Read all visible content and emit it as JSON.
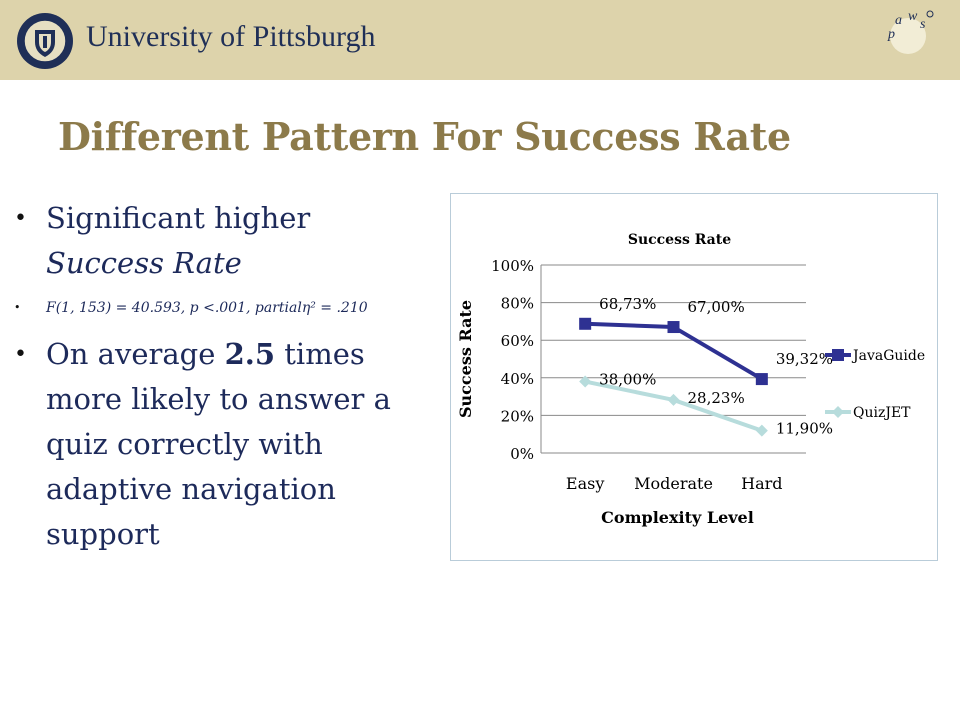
{
  "header": {
    "university_name": "University of Pittsburgh",
    "brand_color": "#ddd3ab",
    "text_color": "#1f2f57",
    "logo_letters": [
      "p",
      "a",
      "w",
      "s"
    ]
  },
  "slide": {
    "title": "Different Pattern For Success Rate",
    "title_color": "#8c7a4a",
    "bullets": {
      "b1_line1": "Significant higher",
      "b1_line2": "Success Rate",
      "b2_text": "F(1, 153) = 40.593, p <.001, partialη² = .210",
      "b3_prefix": "On average ",
      "b3_strong": "2.5",
      "b3_rest": " times more likely to answer a quiz correctly with adaptive navigation support"
    }
  },
  "chart_data": {
    "type": "line",
    "title": "Success Rate",
    "xlabel": "Complexity Level",
    "ylabel": "Success Rate",
    "categories": [
      "Easy",
      "Moderate",
      "Hard"
    ],
    "y_ticks": [
      "0%",
      "20%",
      "40%",
      "60%",
      "80%",
      "100%"
    ],
    "ylim": [
      0,
      100
    ],
    "grid": true,
    "legend": "right",
    "series": [
      {
        "name": "JavaGuide",
        "values": [
          68.73,
          67.0,
          39.32
        ],
        "labels": [
          "68,73%",
          "67,00%",
          "39,32%"
        ],
        "color": "#2e3192",
        "marker": "square"
      },
      {
        "name": "QuizJET",
        "values": [
          38.0,
          28.23,
          11.9
        ],
        "labels": [
          "38,00%",
          "28,23%",
          "11,90%"
        ],
        "color": "#b7dcdc",
        "marker": "diamond"
      }
    ]
  }
}
